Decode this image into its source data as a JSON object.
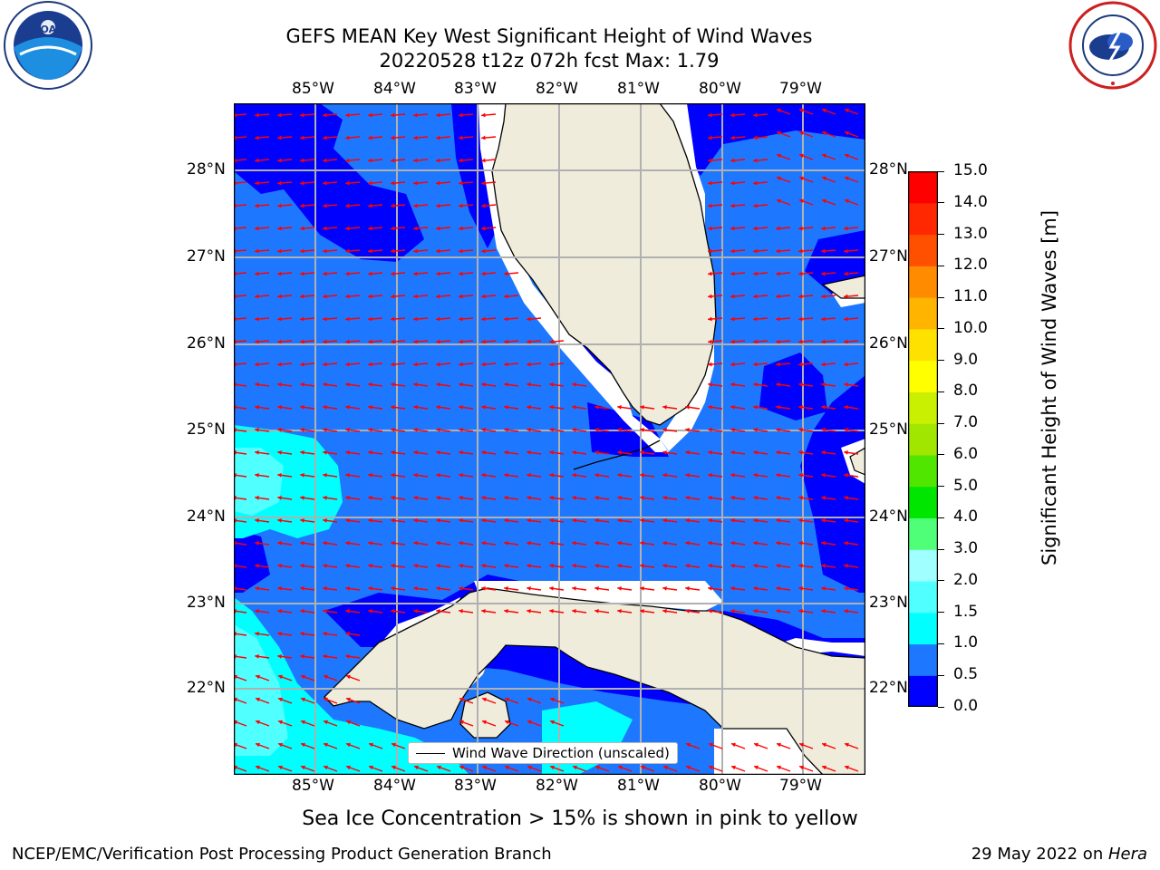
{
  "header": {
    "title_line1": "GEFS MEAN Key West Significant Height of Wind Waves",
    "title_line2": "20220528 t12z 072h fcst   Max: 1.79"
  },
  "map": {
    "lon_labels": [
      "85°W",
      "84°W",
      "83°W",
      "82°W",
      "81°W",
      "80°W",
      "79°W"
    ],
    "lat_labels": [
      "28°N",
      "27°N",
      "26°N",
      "25°N",
      "24°N",
      "23°N",
      "22°N"
    ],
    "legend_label": "Wind Wave Direction (unscaled)",
    "arrow_color": "#ff0000",
    "land_color": "#efecdc"
  },
  "colorbar": {
    "label": "Significant Height of Wind Waves [m]",
    "ticks": [
      "15.0",
      "14.0",
      "13.0",
      "12.0",
      "11.0",
      "10.0",
      "9.0",
      "8.0",
      "7.0",
      "6.0",
      "5.0",
      "4.0",
      "3.0",
      "2.0",
      "1.5",
      "1.0",
      "0.5",
      "0.0"
    ],
    "colors": [
      "#0000ff",
      "#1e78ff",
      "#00ffff",
      "#50ffff",
      "#a0ffff",
      "#50ff78",
      "#00e600",
      "#50e600",
      "#a0e600",
      "#c8f000",
      "#ffff00",
      "#ffe100",
      "#ffb400",
      "#ff8c00",
      "#ff5000",
      "#ff2800",
      "#ff0000"
    ]
  },
  "caption": "Sea Ice Concentration > 15% is shown in pink to yellow",
  "footer": {
    "left": "NCEP/EMC/Verification Post Processing Product Generation Branch",
    "right_prefix": "29 May 2022 on ",
    "right_host": "Hera"
  },
  "logos": {
    "noaa_text": "NOAA",
    "noaa_ring": "NATIONAL OCEANIC AND ATMOSPHERIC ADMINISTRATION · U.S. DEPARTMENT OF COMMERCE",
    "nws_ring": "NATIONAL WEATHER SERVICE"
  }
}
